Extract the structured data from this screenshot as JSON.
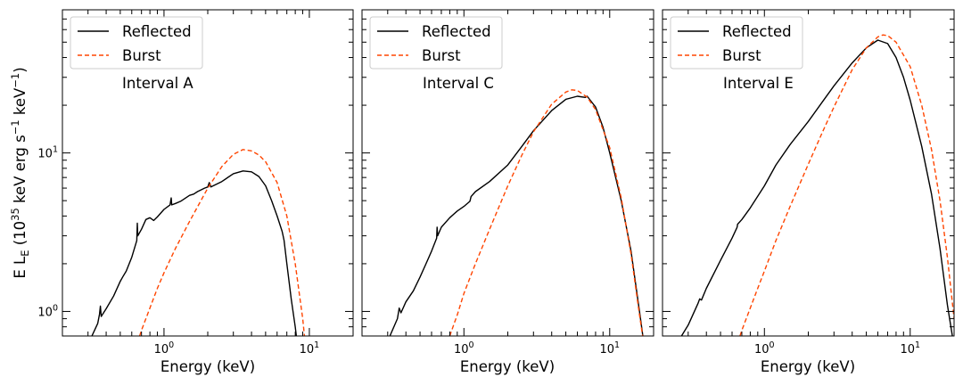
{
  "chart_data": [
    {
      "type": "line",
      "panel": "A",
      "annotation": "Interval A",
      "xlabel": "Energy (keV)",
      "xscale": "log",
      "yscale": "log",
      "xlim": [
        0.2,
        20
      ],
      "ylim": [
        0.7,
        80
      ],
      "xticks": [
        {
          "value": 1,
          "base": "10",
          "exp": "0"
        },
        {
          "value": 10,
          "base": "10",
          "exp": "1"
        }
      ],
      "yticks": [
        {
          "value": 1,
          "base": "10",
          "exp": "0"
        },
        {
          "value": 10,
          "base": "10",
          "exp": "1"
        }
      ],
      "legend": {
        "loc": "upper left",
        "entries": [
          "Reflected",
          "Burst"
        ]
      },
      "series": [
        {
          "name": "Reflected",
          "color": "#000000",
          "style": "solid",
          "x": [
            0.3,
            0.35,
            0.36,
            0.365,
            0.37,
            0.4,
            0.45,
            0.5,
            0.52,
            0.55,
            0.6,
            0.65,
            0.655,
            0.66,
            0.7,
            0.75,
            0.8,
            0.85,
            0.9,
            1.0,
            1.1,
            1.12,
            1.13,
            1.2,
            1.3,
            1.5,
            1.6,
            1.7,
            1.9,
            2.0,
            2.05,
            2.1,
            2.5,
            3.0,
            3.5,
            4.0,
            4.5,
            5.0,
            5.5,
            6.0,
            6.5,
            6.6,
            6.7,
            7.0,
            7.5,
            8.0,
            8.4
          ],
          "y": [
            0.62,
            0.84,
            0.96,
            1.08,
            0.93,
            1.04,
            1.25,
            1.55,
            1.65,
            1.8,
            2.2,
            2.8,
            3.6,
            3.0,
            3.3,
            3.8,
            3.9,
            3.75,
            3.95,
            4.4,
            4.7,
            5.2,
            4.7,
            4.8,
            4.95,
            5.4,
            5.5,
            5.7,
            6.0,
            6.1,
            6.5,
            6.1,
            6.6,
            7.4,
            7.7,
            7.6,
            7.1,
            6.2,
            5.0,
            4.0,
            3.2,
            3.0,
            2.8,
            2.0,
            1.2,
            0.8,
            0.55
          ]
        },
        {
          "name": "Burst",
          "color": "#ff4500",
          "style": "dashed",
          "x": [
            0.68,
            0.7,
            0.8,
            0.9,
            1.0,
            1.2,
            1.5,
            2.0,
            2.5,
            3.0,
            3.5,
            4.0,
            4.5,
            5.0,
            6.0,
            7.0,
            8.0,
            9.0,
            9.5
          ],
          "y": [
            0.7,
            0.76,
            1.05,
            1.4,
            1.75,
            2.5,
            3.7,
            6.0,
            8.2,
            9.8,
            10.5,
            10.3,
            9.7,
            8.8,
            6.5,
            4.0,
            2.0,
            0.9,
            0.55
          ]
        }
      ]
    },
    {
      "type": "line",
      "panel": "C",
      "annotation": "Interval C",
      "xlabel": "Energy (keV)",
      "xscale": "log",
      "yscale": "log",
      "xlim": [
        0.2,
        20
      ],
      "ylim": [
        0.7,
        80
      ],
      "xticks": [
        {
          "value": 1,
          "base": "10",
          "exp": "0"
        },
        {
          "value": 10,
          "base": "10",
          "exp": "1"
        }
      ],
      "yticks": [
        {
          "value": 1,
          "base": "10",
          "exp": "0"
        },
        {
          "value": 10,
          "base": "10",
          "exp": "1"
        }
      ],
      "legend": {
        "loc": "upper left",
        "entries": [
          "Reflected",
          "Burst"
        ]
      },
      "series": [
        {
          "name": "Reflected",
          "color": "#000000",
          "style": "solid",
          "x": [
            0.3,
            0.35,
            0.36,
            0.37,
            0.4,
            0.45,
            0.5,
            0.55,
            0.6,
            0.65,
            0.655,
            0.66,
            0.7,
            0.8,
            0.9,
            1.0,
            1.1,
            1.12,
            1.2,
            1.5,
            2.0,
            2.5,
            3.0,
            4.0,
            5.0,
            6.0,
            6.8,
            7.0,
            8.0,
            9.0,
            10.0,
            12.0,
            14.0,
            16.0,
            17.5
          ],
          "y": [
            0.65,
            0.9,
            1.05,
            0.98,
            1.15,
            1.35,
            1.65,
            2.0,
            2.4,
            2.9,
            3.4,
            3.0,
            3.4,
            3.9,
            4.3,
            4.6,
            4.95,
            5.3,
            5.7,
            6.6,
            8.4,
            11.0,
            13.8,
            18.5,
            21.8,
            22.8,
            22.4,
            22.8,
            19.5,
            14.5,
            10.0,
            5.0,
            2.4,
            1.0,
            0.55
          ]
        },
        {
          "name": "Burst",
          "color": "#ff4500",
          "style": "dashed",
          "x": [
            0.8,
            0.85,
            0.9,
            1.0,
            1.2,
            1.5,
            2.0,
            2.5,
            3.0,
            4.0,
            5.0,
            5.5,
            6.0,
            7.0,
            8.0,
            10.0,
            12.0,
            14.0,
            16.0,
            17.5
          ],
          "y": [
            0.7,
            0.82,
            0.95,
            1.3,
            2.0,
            3.3,
            6.2,
            9.7,
            13.6,
            20.3,
            24.2,
            25.0,
            24.8,
            22.5,
            18.8,
            10.8,
            5.2,
            2.3,
            0.95,
            0.55
          ]
        }
      ]
    },
    {
      "type": "line",
      "panel": "E",
      "annotation": "Interval E",
      "xlabel": "Energy (keV)",
      "xscale": "log",
      "yscale": "log",
      "xlim": [
        0.2,
        20
      ],
      "ylim": [
        0.7,
        80
      ],
      "xticks": [
        {
          "value": 1,
          "base": "10",
          "exp": "0"
        },
        {
          "value": 10,
          "base": "10",
          "exp": "1"
        }
      ],
      "yticks": [
        {
          "value": 1,
          "base": "10",
          "exp": "0"
        },
        {
          "value": 10,
          "base": "10",
          "exp": "1"
        }
      ],
      "legend": {
        "loc": "upper left",
        "entries": [
          "Reflected",
          "Burst"
        ]
      },
      "series": [
        {
          "name": "Reflected",
          "color": "#000000",
          "style": "solid",
          "x": [
            0.27,
            0.3,
            0.35,
            0.36,
            0.37,
            0.4,
            0.5,
            0.6,
            0.65,
            0.655,
            0.7,
            0.8,
            1.0,
            1.2,
            1.5,
            2.0,
            2.5,
            3.0,
            4.0,
            5.0,
            6.0,
            7.0,
            8.0,
            9.0,
            10.0,
            12.0,
            14.0,
            16.0,
            18.0,
            20.0
          ],
          "y": [
            0.7,
            0.82,
            1.12,
            1.2,
            1.18,
            1.4,
            2.1,
            2.9,
            3.4,
            3.55,
            3.8,
            4.5,
            6.2,
            8.4,
            11.3,
            15.8,
            21.0,
            26.5,
            37.0,
            46.0,
            51.5,
            49.0,
            40.0,
            30.0,
            21.5,
            11.0,
            5.5,
            2.5,
            1.1,
            0.6
          ]
        },
        {
          "name": "Burst",
          "color": "#ff4500",
          "style": "dashed",
          "x": [
            0.68,
            0.7,
            0.8,
            0.9,
            1.0,
            1.2,
            1.5,
            2.0,
            2.5,
            3.0,
            4.0,
            5.0,
            6.0,
            6.5,
            7.0,
            8.0,
            10.0,
            12.0,
            14.0,
            16.0,
            18.0,
            20.0
          ],
          "y": [
            0.7,
            0.76,
            1.05,
            1.4,
            1.8,
            2.8,
            4.6,
            8.5,
            13.5,
            19.5,
            33.5,
            46.0,
            54.0,
            55.5,
            55.0,
            50.0,
            35.0,
            20.0,
            10.5,
            5.0,
            2.2,
            0.9
          ]
        }
      ]
    }
  ],
  "shared": {
    "ylabel": {
      "main": "E L",
      "sub": "E",
      "open": " (10",
      "sup1": "35",
      "unit1": " keV erg s",
      "sup2": "−1",
      "unit2": " keV",
      "sup3": "−1",
      "close": ")"
    }
  }
}
